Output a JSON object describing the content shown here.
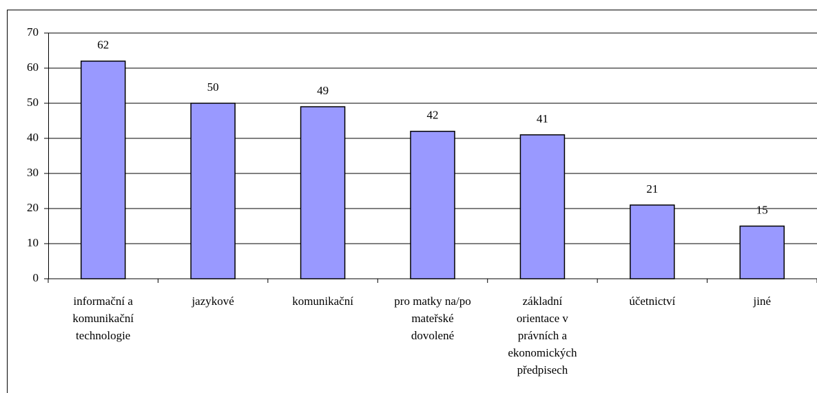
{
  "chart_data": {
    "type": "bar",
    "categories": [
      "informační a komunikační technologie",
      "jazykové",
      "komunikační",
      "pro matky na/po mateřské dovolené",
      "základní orientace v právních a ekonomických předpisech",
      "účetnictví",
      "jiné"
    ],
    "values": [
      62,
      50,
      49,
      42,
      41,
      21,
      15
    ],
    "color": "#9999ff",
    "ylim": [
      0,
      70
    ],
    "yticks": [
      0,
      10,
      20,
      30,
      40,
      50,
      60,
      70
    ],
    "grid": true
  }
}
